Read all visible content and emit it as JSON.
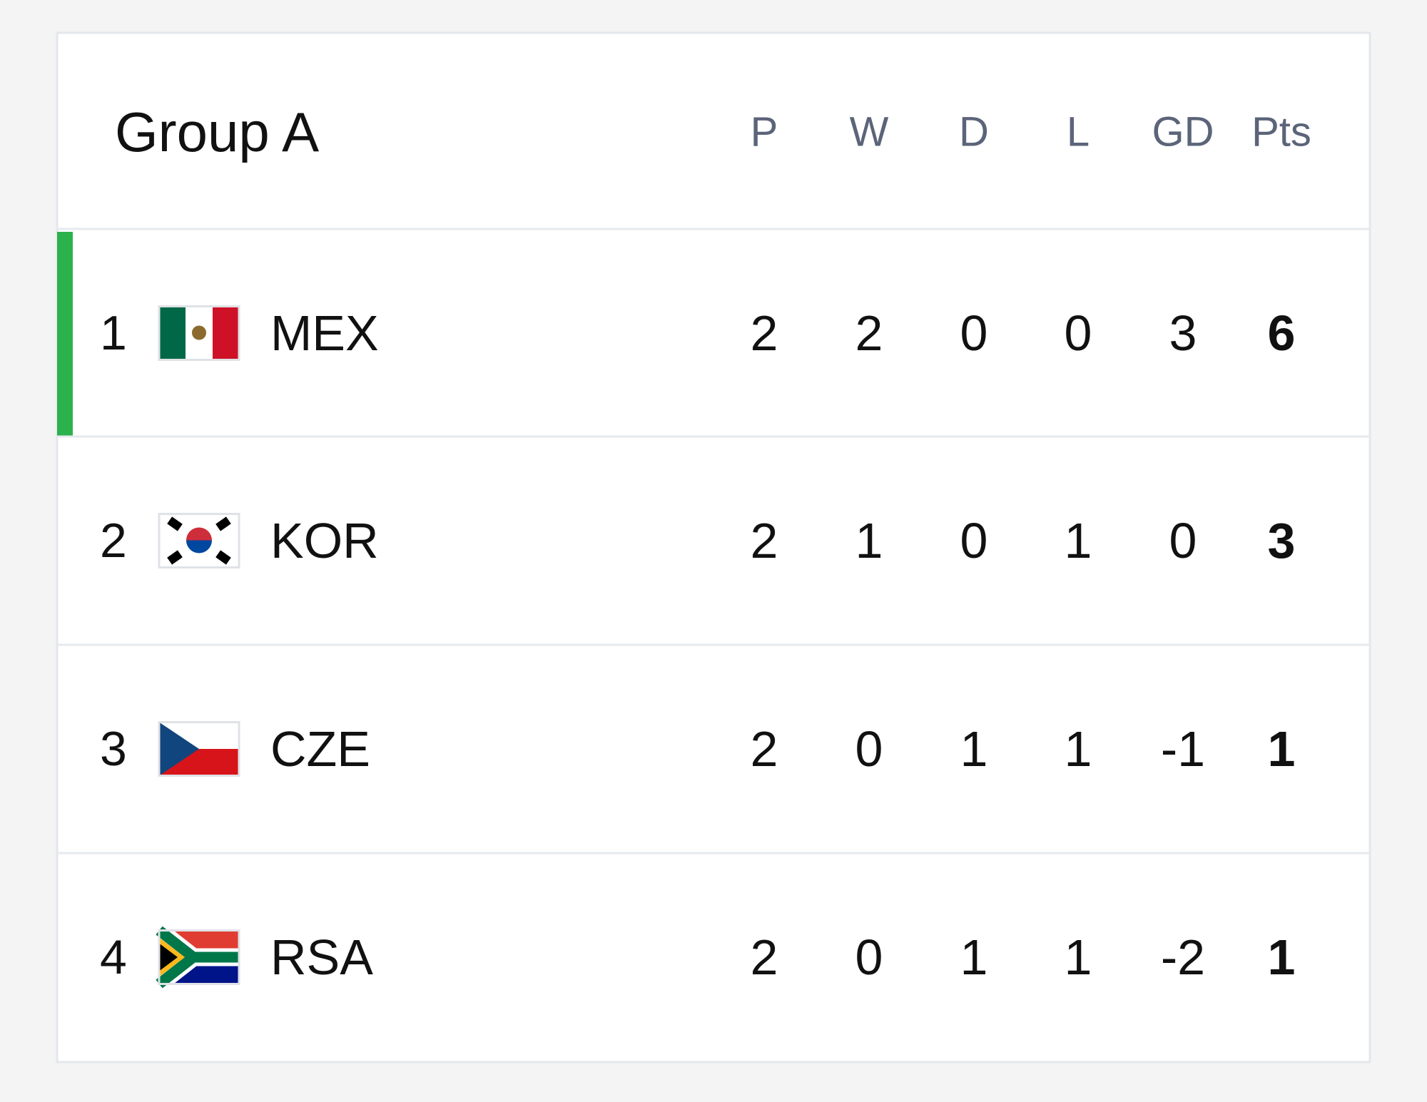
{
  "header": {
    "title": "Group A",
    "columns": [
      "P",
      "W",
      "D",
      "L",
      "GD",
      "Pts"
    ]
  },
  "table": {
    "rows": [
      {
        "rank": 1,
        "team": "MEX",
        "p": 2,
        "w": 2,
        "d": 0,
        "l": 0,
        "gd": 3,
        "pts": 6
      },
      {
        "rank": 2,
        "team": "KOR",
        "p": 2,
        "w": 1,
        "d": 0,
        "l": 1,
        "gd": 0,
        "pts": 3
      },
      {
        "rank": 3,
        "team": "CZE",
        "p": 2,
        "w": 0,
        "d": 1,
        "l": 1,
        "gd": -1,
        "pts": 1
      },
      {
        "rank": 4,
        "team": "RSA",
        "p": 2,
        "w": 0,
        "d": 1,
        "l": 1,
        "gd": -2,
        "pts": 1
      }
    ]
  }
}
